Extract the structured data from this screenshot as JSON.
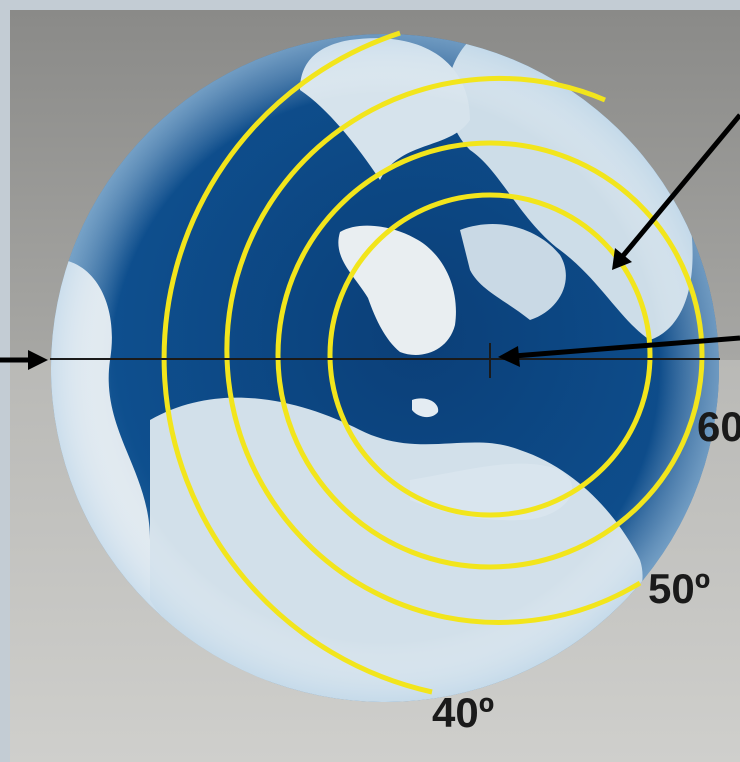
{
  "figure": {
    "latitude_labels": [
      "40º",
      "50º",
      "60"
    ],
    "colors": {
      "latitude_circle": "#f2e51c",
      "ocean": "#0d4a86",
      "ice": "#dfe8ef",
      "arrow": "#000000"
    }
  }
}
